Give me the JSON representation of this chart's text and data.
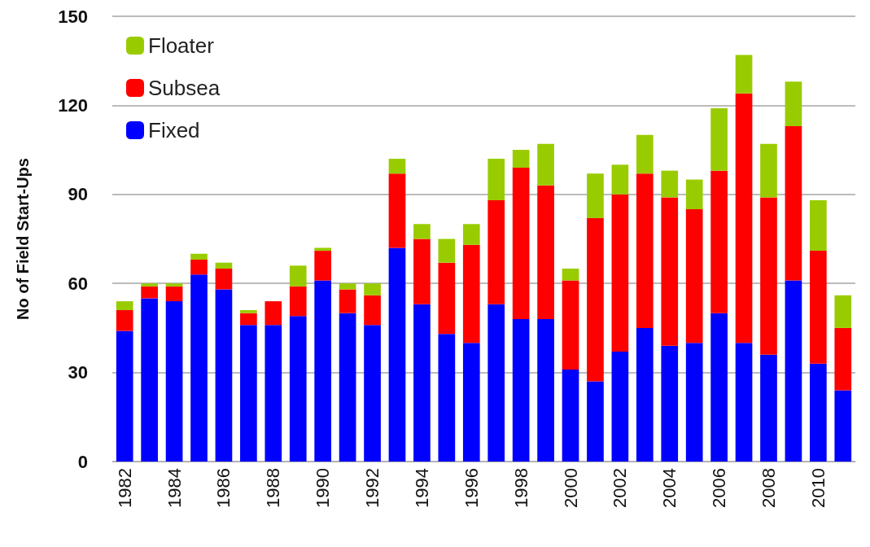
{
  "chart_data": {
    "type": "bar",
    "stacked": true,
    "ylabel": "No of Field Start-Ups",
    "categories": [
      "1982",
      null,
      "1984",
      null,
      "1986",
      null,
      "1988",
      null,
      "1990",
      null,
      "1992",
      null,
      "1994",
      null,
      "1996",
      null,
      "1998",
      null,
      "2000",
      null,
      "2002",
      null,
      "2004",
      null,
      "2006",
      null,
      "2008",
      null,
      "2010",
      null
    ],
    "series": [
      {
        "name": "Fixed",
        "color": "#0000ff",
        "values": [
          44,
          55,
          54,
          63,
          58,
          46,
          46,
          49,
          61,
          50,
          46,
          72,
          53,
          43,
          40,
          53,
          48,
          48,
          31,
          27,
          37,
          45,
          39,
          40,
          50,
          40,
          36,
          61,
          33,
          24
        ]
      },
      {
        "name": "Subsea",
        "color": "#ff0000",
        "values": [
          7,
          4,
          5,
          5,
          7,
          4,
          8,
          10,
          10,
          8,
          10,
          25,
          22,
          24,
          33,
          35,
          51,
          45,
          30,
          55,
          53,
          52,
          50,
          45,
          48,
          84,
          53,
          52,
          38,
          21
        ]
      },
      {
        "name": "Floater",
        "color": "#99cc00",
        "values": [
          3,
          1,
          1,
          2,
          2,
          1,
          0,
          7,
          1,
          2,
          4,
          5,
          5,
          8,
          7,
          14,
          6,
          14,
          4,
          15,
          10,
          13,
          9,
          10,
          21,
          13,
          18,
          15,
          17,
          11
        ]
      }
    ],
    "ylim": [
      0,
      150
    ],
    "yticks": [
      0,
      30,
      60,
      90,
      120,
      150
    ],
    "grid": "y",
    "legend": "top left"
  }
}
